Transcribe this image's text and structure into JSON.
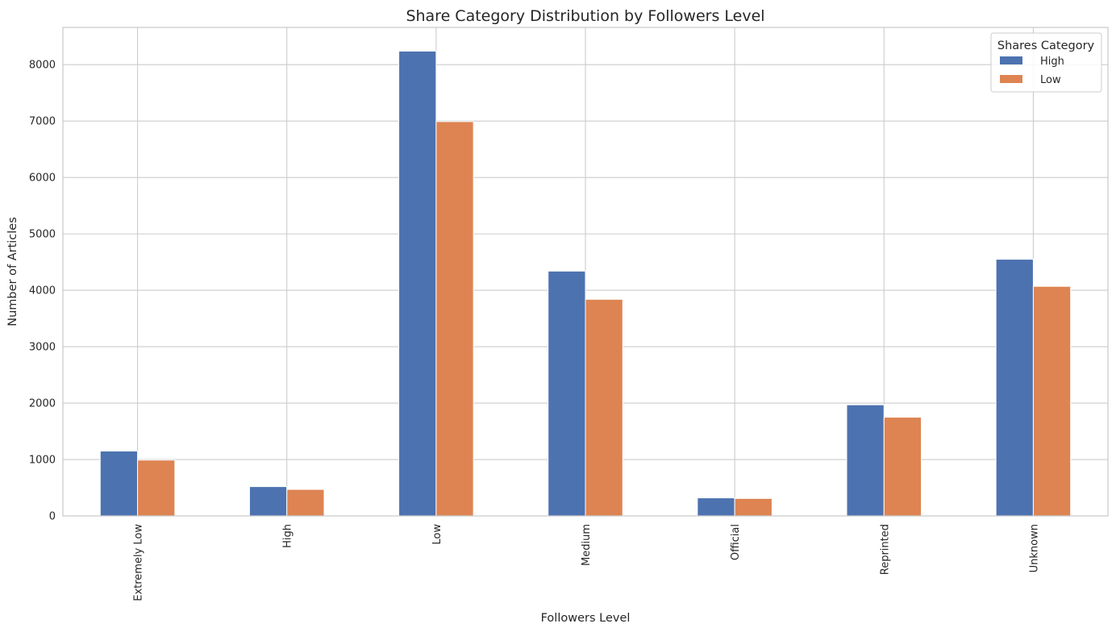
{
  "chart_data": {
    "type": "bar",
    "title": "Share Category Distribution by Followers Level",
    "xlabel": "Followers Level",
    "ylabel": "Number of Articles",
    "categories": [
      "Extremely Low",
      "High",
      "Low",
      "Medium",
      "Official",
      "Reprinted",
      "Unknown"
    ],
    "series": [
      {
        "name": "High",
        "values": [
          1150,
          520,
          8240,
          4340,
          320,
          1970,
          4550
        ],
        "color": "#4c72b0"
      },
      {
        "name": "Low",
        "values": [
          990,
          470,
          6990,
          3840,
          310,
          1750,
          4070
        ],
        "color": "#dd8452"
      }
    ],
    "ylim": [
      0,
      8660
    ],
    "yticks": [
      0,
      1000,
      2000,
      3000,
      4000,
      5000,
      6000,
      7000,
      8000
    ],
    "grid": true,
    "legend_title": "Shares Category",
    "legend_position": "top-right"
  }
}
